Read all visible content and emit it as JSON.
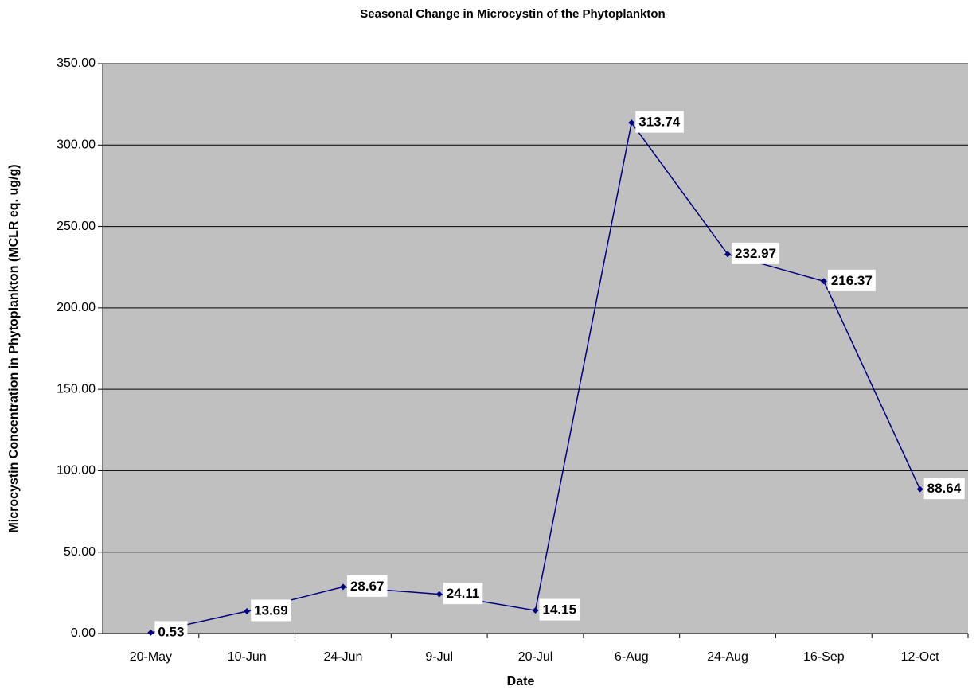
{
  "chart_data": {
    "type": "line",
    "title": "Seasonal Change in Microcystin of the Phytoplankton",
    "x_label": "Date",
    "y_label": "Microcystin Concentration in Phytoplankton (MCLR eq. ug/g)",
    "categories": [
      "20-May",
      "10-Jun",
      "24-Jun",
      "9-Jul",
      "20-Jul",
      "6-Aug",
      "24-Aug",
      "16-Sep",
      "12-Oct"
    ],
    "series": [
      {
        "name": "Microcystin",
        "color": "#000080",
        "values": [
          0.53,
          13.69,
          28.67,
          24.11,
          14.15,
          313.74,
          232.97,
          216.37,
          88.64
        ]
      }
    ],
    "ylim": [
      0,
      350
    ],
    "yticks": [
      {
        "value": 0,
        "label": "0.00"
      },
      {
        "value": 50,
        "label": "50.00"
      },
      {
        "value": 100,
        "label": "100.00"
      },
      {
        "value": 150,
        "label": "150.00"
      },
      {
        "value": 200,
        "label": "200.00"
      },
      {
        "value": 250,
        "label": "250.00"
      },
      {
        "value": 300,
        "label": "300.00"
      },
      {
        "value": 350,
        "label": "350.00"
      }
    ],
    "grid": true,
    "plot_background": "#c0c0c0"
  }
}
